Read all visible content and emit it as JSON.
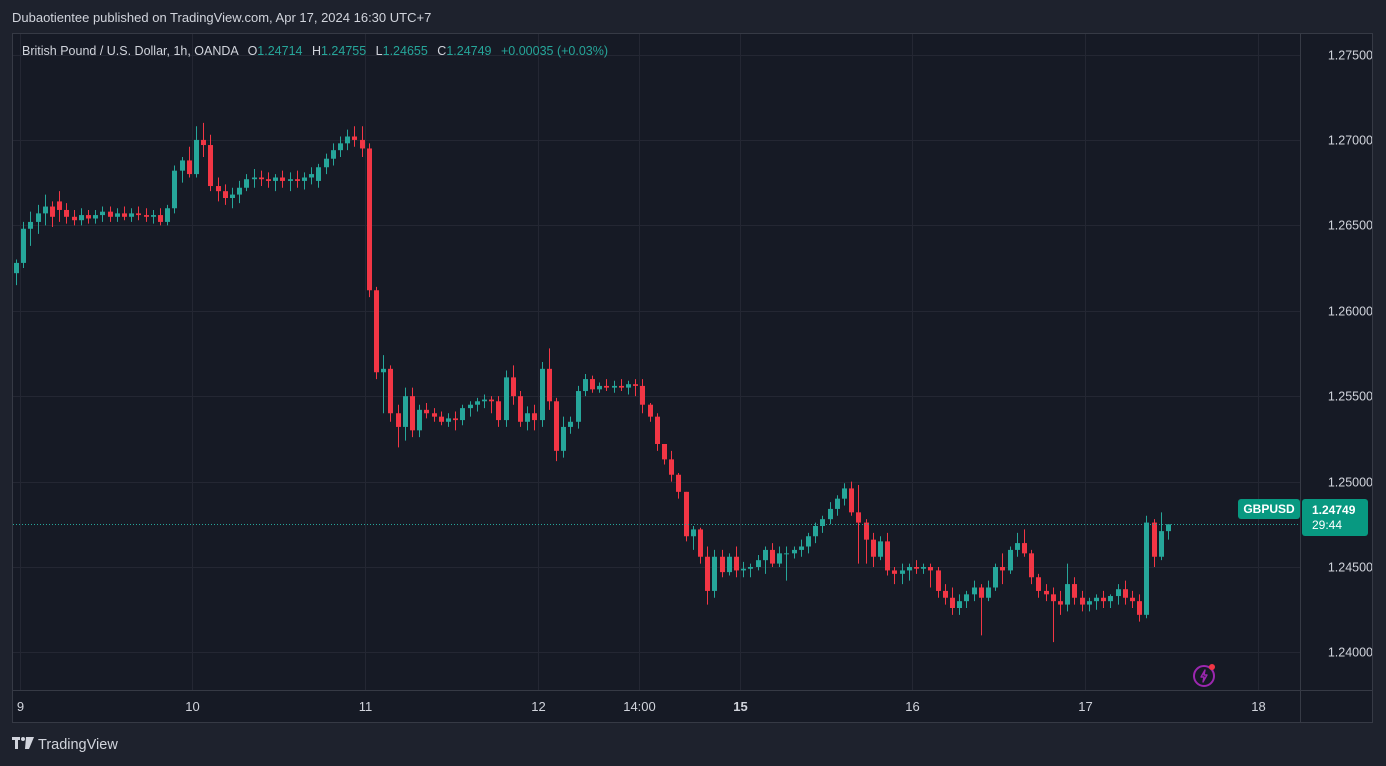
{
  "header": {
    "publisher": "Dubaotientee published on TradingView.com, Apr 17, 2024 16:30 UTC+7"
  },
  "legend": {
    "instrument": "British Pound / U.S. Dollar, 1h, OANDA",
    "open_label": "O",
    "open": "1.24714",
    "high_label": "H",
    "high": "1.24755",
    "low_label": "L",
    "low": "1.24655",
    "close_label": "C",
    "close": "1.24749",
    "change": "+0.00035 (+0.03%)"
  },
  "price_tag": {
    "symbol": "GBPUSD",
    "price": "1.24749",
    "countdown": "29:44"
  },
  "footer": {
    "brand": "TradingView"
  },
  "colors": {
    "up": "#26a69a",
    "down": "#f23645",
    "background": "#161a25",
    "grid": "#242733",
    "text": "#d1d4dc",
    "tag": "#089981",
    "alert": "#9c27b0"
  },
  "icons": {
    "alert": "lightning-alert-icon",
    "logo": "tradingview-logo-icon"
  },
  "chart_data": {
    "type": "candlestick",
    "timeframe": "1h",
    "ylim": [
      1.2378,
      1.2762
    ],
    "y_ticks": [
      "1.27500",
      "1.27000",
      "1.26500",
      "1.26000",
      "1.25500",
      "1.25000",
      "1.24500",
      "1.24000"
    ],
    "x_tick_labels": [
      {
        "label": "9",
        "x": 0.5,
        "bold": false
      },
      {
        "label": "10",
        "x": 24.5,
        "bold": false
      },
      {
        "label": "11",
        "x": 48.5,
        "bold": false
      },
      {
        "label": "12",
        "x": 72.5,
        "bold": false
      },
      {
        "label": "14:00",
        "x": 86.5,
        "bold": false
      },
      {
        "label": "15",
        "x": 100.5,
        "bold": true
      },
      {
        "label": "16",
        "x": 124.5,
        "bold": false
      },
      {
        "label": "17",
        "x": 148.5,
        "bold": false
      },
      {
        "label": "18",
        "x": 172.5,
        "bold": false
      }
    ],
    "last_price": 1.24749,
    "candles": [
      [
        1.2622,
        1.263,
        1.2615,
        1.2628
      ],
      [
        1.2628,
        1.2652,
        1.2625,
        1.2648
      ],
      [
        1.2648,
        1.2658,
        1.2638,
        1.2652
      ],
      [
        1.2652,
        1.2662,
        1.2645,
        1.2657
      ],
      [
        1.2657,
        1.2668,
        1.265,
        1.2661
      ],
      [
        1.2661,
        1.2664,
        1.2649,
        1.2655
      ],
      [
        1.2664,
        1.267,
        1.2652,
        1.2659
      ],
      [
        1.2659,
        1.2663,
        1.2651,
        1.2655
      ],
      [
        1.2655,
        1.2659,
        1.265,
        1.2653
      ],
      [
        1.2653,
        1.266,
        1.265,
        1.2656
      ],
      [
        1.2656,
        1.2659,
        1.2651,
        1.2654
      ],
      [
        1.2654,
        1.2659,
        1.2651,
        1.2656
      ],
      [
        1.2656,
        1.2661,
        1.2652,
        1.2658
      ],
      [
        1.2658,
        1.2661,
        1.2652,
        1.2655
      ],
      [
        1.2655,
        1.266,
        1.2652,
        1.2657
      ],
      [
        1.2657,
        1.2661,
        1.2653,
        1.2655
      ],
      [
        1.2655,
        1.266,
        1.2652,
        1.2657
      ],
      [
        1.2657,
        1.2661,
        1.2653,
        1.2656
      ],
      [
        1.2656,
        1.266,
        1.2652,
        1.2655
      ],
      [
        1.2655,
        1.2659,
        1.2651,
        1.2656
      ],
      [
        1.2656,
        1.266,
        1.265,
        1.2652
      ],
      [
        1.2652,
        1.2662,
        1.265,
        1.266
      ],
      [
        1.266,
        1.2685,
        1.2657,
        1.2682
      ],
      [
        1.2682,
        1.269,
        1.2675,
        1.2688
      ],
      [
        1.2688,
        1.2696,
        1.2678,
        1.268
      ],
      [
        1.268,
        1.2708,
        1.2678,
        1.27
      ],
      [
        1.27,
        1.271,
        1.269,
        1.2697
      ],
      [
        1.2697,
        1.2703,
        1.267,
        1.2673
      ],
      [
        1.2673,
        1.2678,
        1.2664,
        1.267
      ],
      [
        1.267,
        1.2674,
        1.2662,
        1.2666
      ],
      [
        1.2666,
        1.2672,
        1.266,
        1.2668
      ],
      [
        1.2668,
        1.2676,
        1.2663,
        1.2672
      ],
      [
        1.2672,
        1.268,
        1.267,
        1.2677
      ],
      [
        1.2677,
        1.2683,
        1.2672,
        1.2678
      ],
      [
        1.2678,
        1.2682,
        1.2673,
        1.2677
      ],
      [
        1.2677,
        1.2681,
        1.2672,
        1.2676
      ],
      [
        1.2676,
        1.268,
        1.267,
        1.2678
      ],
      [
        1.2678,
        1.2682,
        1.2672,
        1.2676
      ],
      [
        1.2676,
        1.2681,
        1.267,
        1.2677
      ],
      [
        1.2677,
        1.2682,
        1.2672,
        1.2676
      ],
      [
        1.2676,
        1.2681,
        1.2671,
        1.2678
      ],
      [
        1.2678,
        1.2684,
        1.2674,
        1.268
      ],
      [
        1.2676,
        1.2686,
        1.2672,
        1.2684
      ],
      [
        1.2684,
        1.2692,
        1.268,
        1.2689
      ],
      [
        1.2689,
        1.2698,
        1.2685,
        1.2694
      ],
      [
        1.2694,
        1.2702,
        1.269,
        1.2698
      ],
      [
        1.2698,
        1.2706,
        1.2694,
        1.2702
      ],
      [
        1.2702,
        1.2708,
        1.2696,
        1.27
      ],
      [
        1.27,
        1.2708,
        1.269,
        1.2695
      ],
      [
        1.2695,
        1.2698,
        1.2608,
        1.2612
      ],
      [
        1.2612,
        1.2614,
        1.256,
        1.2564
      ],
      [
        1.2564,
        1.2574,
        1.254,
        1.2566
      ],
      [
        1.2566,
        1.2568,
        1.2535,
        1.254
      ],
      [
        1.254,
        1.2545,
        1.252,
        1.2532
      ],
      [
        1.2532,
        1.2555,
        1.2524,
        1.255
      ],
      [
        1.255,
        1.2555,
        1.2526,
        1.253
      ],
      [
        1.253,
        1.2545,
        1.2526,
        1.2542
      ],
      [
        1.2542,
        1.2546,
        1.2537,
        1.254
      ],
      [
        1.254,
        1.2543,
        1.2535,
        1.2538
      ],
      [
        1.2538,
        1.2541,
        1.2533,
        1.2535
      ],
      [
        1.2535,
        1.254,
        1.2532,
        1.2537
      ],
      [
        1.2537,
        1.2541,
        1.253,
        1.2536
      ],
      [
        1.2536,
        1.2545,
        1.2533,
        1.2543
      ],
      [
        1.2543,
        1.2547,
        1.2538,
        1.2545
      ],
      [
        1.2545,
        1.2549,
        1.2541,
        1.2547
      ],
      [
        1.2547,
        1.2551,
        1.2543,
        1.2548
      ],
      [
        1.2548,
        1.255,
        1.254,
        1.2547
      ],
      [
        1.2547,
        1.255,
        1.2532,
        1.2536
      ],
      [
        1.2536,
        1.2565,
        1.2532,
        1.2561
      ],
      [
        1.2561,
        1.2568,
        1.2545,
        1.255
      ],
      [
        1.255,
        1.2553,
        1.2532,
        1.2535
      ],
      [
        1.2535,
        1.2544,
        1.253,
        1.254
      ],
      [
        1.254,
        1.2545,
        1.253,
        1.2536
      ],
      [
        1.2536,
        1.257,
        1.2532,
        1.2566
      ],
      [
        1.2566,
        1.2578,
        1.2542,
        1.2547
      ],
      [
        1.2547,
        1.2549,
        1.2512,
        1.2518
      ],
      [
        1.2518,
        1.2538,
        1.2514,
        1.2532
      ],
      [
        1.2532,
        1.2538,
        1.2528,
        1.2535
      ],
      [
        1.2535,
        1.2556,
        1.2531,
        1.2553
      ],
      [
        1.2553,
        1.2563,
        1.255,
        1.256
      ],
      [
        1.256,
        1.2562,
        1.2552,
        1.2554
      ],
      [
        1.2554,
        1.2558,
        1.2552,
        1.2556
      ],
      [
        1.2556,
        1.256,
        1.2553,
        1.2555
      ],
      [
        1.2555,
        1.2559,
        1.2552,
        1.2556
      ],
      [
        1.2556,
        1.256,
        1.2553,
        1.2555
      ],
      [
        1.2555,
        1.2559,
        1.2551,
        1.2557
      ],
      [
        1.2557,
        1.256,
        1.255,
        1.2556
      ],
      [
        1.2556,
        1.256,
        1.254,
        1.2545
      ],
      [
        1.2545,
        1.2546,
        1.2535,
        1.2538
      ],
      [
        1.2538,
        1.254,
        1.2518,
        1.2522
      ],
      [
        1.2522,
        1.2522,
        1.251,
        1.2513
      ],
      [
        1.2513,
        1.2518,
        1.25,
        1.2504
      ],
      [
        1.2504,
        1.2505,
        1.249,
        1.2494
      ],
      [
        1.2494,
        1.2494,
        1.2465,
        1.2468
      ],
      [
        1.2468,
        1.2474,
        1.246,
        1.2472
      ],
      [
        1.2472,
        1.2473,
        1.2452,
        1.2456
      ],
      [
        1.2456,
        1.2462,
        1.2428,
        1.2436
      ],
      [
        1.2436,
        1.246,
        1.2432,
        1.2456
      ],
      [
        1.2456,
        1.246,
        1.2444,
        1.2447
      ],
      [
        1.2447,
        1.2458,
        1.2445,
        1.2456
      ],
      [
        1.2456,
        1.2462,
        1.2444,
        1.2448
      ],
      [
        1.2448,
        1.2453,
        1.2444,
        1.2449
      ],
      [
        1.2449,
        1.2452,
        1.2444,
        1.245
      ],
      [
        1.245,
        1.2457,
        1.2448,
        1.2454
      ],
      [
        1.2454,
        1.2462,
        1.2446,
        1.246
      ],
      [
        1.246,
        1.2464,
        1.245,
        1.2452
      ],
      [
        1.2452,
        1.2462,
        1.245,
        1.2458
      ],
      [
        1.2458,
        1.2462,
        1.2442,
        1.2458
      ],
      [
        1.2458,
        1.2462,
        1.2455,
        1.246
      ],
      [
        1.246,
        1.2466,
        1.2456,
        1.2462
      ],
      [
        1.2462,
        1.247,
        1.2458,
        1.2468
      ],
      [
        1.2468,
        1.2476,
        1.2464,
        1.2474
      ],
      [
        1.2474,
        1.248,
        1.247,
        1.2478
      ],
      [
        1.2478,
        1.2488,
        1.2475,
        1.2484
      ],
      [
        1.2484,
        1.2492,
        1.248,
        1.249
      ],
      [
        1.249,
        1.2499,
        1.2486,
        1.2496
      ],
      [
        1.2496,
        1.25,
        1.248,
        1.2482
      ],
      [
        1.2482,
        1.2498,
        1.2452,
        1.2476
      ],
      [
        1.2476,
        1.2478,
        1.2452,
        1.2466
      ],
      [
        1.2466,
        1.247,
        1.245,
        1.2456
      ],
      [
        1.2456,
        1.2468,
        1.2454,
        1.2465
      ],
      [
        1.2465,
        1.247,
        1.2445,
        1.2448
      ],
      [
        1.2448,
        1.245,
        1.244,
        1.2446
      ],
      [
        1.2446,
        1.2452,
        1.244,
        1.2448
      ],
      [
        1.2448,
        1.2452,
        1.2442,
        1.245
      ],
      [
        1.245,
        1.2454,
        1.2446,
        1.2449
      ],
      [
        1.2449,
        1.2452,
        1.2446,
        1.245
      ],
      [
        1.245,
        1.2452,
        1.2438,
        1.2448
      ],
      [
        1.2448,
        1.245,
        1.2432,
        1.2436
      ],
      [
        1.2436,
        1.244,
        1.2428,
        1.2432
      ],
      [
        1.2432,
        1.2438,
        1.2422,
        1.2426
      ],
      [
        1.2426,
        1.2434,
        1.2422,
        1.243
      ],
      [
        1.243,
        1.2436,
        1.2426,
        1.2434
      ],
      [
        1.2434,
        1.2442,
        1.243,
        1.2438
      ],
      [
        1.2438,
        1.244,
        1.241,
        1.2432
      ],
      [
        1.2432,
        1.2442,
        1.243,
        1.2438
      ],
      [
        1.2438,
        1.2452,
        1.2436,
        1.245
      ],
      [
        1.245,
        1.2458,
        1.244,
        1.2448
      ],
      [
        1.2448,
        1.2462,
        1.2446,
        1.246
      ],
      [
        1.246,
        1.247,
        1.2456,
        1.2464
      ],
      [
        1.2464,
        1.2472,
        1.2456,
        1.2458
      ],
      [
        1.2458,
        1.246,
        1.244,
        1.2444
      ],
      [
        1.2444,
        1.2446,
        1.2432,
        1.2436
      ],
      [
        1.2436,
        1.244,
        1.243,
        1.2434
      ],
      [
        1.2434,
        1.2438,
        1.2406,
        1.243
      ],
      [
        1.243,
        1.2436,
        1.2422,
        1.2428
      ],
      [
        1.2428,
        1.2452,
        1.2424,
        1.244
      ],
      [
        1.244,
        1.2444,
        1.2428,
        1.2432
      ],
      [
        1.2432,
        1.2436,
        1.2424,
        1.2428
      ],
      [
        1.2428,
        1.2432,
        1.2424,
        1.243
      ],
      [
        1.243,
        1.2434,
        1.2425,
        1.2432
      ],
      [
        1.2432,
        1.2436,
        1.2426,
        1.243
      ],
      [
        1.243,
        1.2434,
        1.2426,
        1.2433
      ],
      [
        1.2433,
        1.244,
        1.2428,
        1.2437
      ],
      [
        1.2437,
        1.2442,
        1.2428,
        1.2432
      ],
      [
        1.2432,
        1.2436,
        1.2426,
        1.243
      ],
      [
        1.243,
        1.2434,
        1.2418,
        1.2422
      ],
      [
        1.2422,
        1.248,
        1.242,
        1.2476
      ],
      [
        1.2476,
        1.2478,
        1.245,
        1.2456
      ],
      [
        1.2456,
        1.2482,
        1.2454,
        1.2471
      ],
      [
        1.2471,
        1.2475,
        1.2466,
        1.2475
      ]
    ]
  }
}
